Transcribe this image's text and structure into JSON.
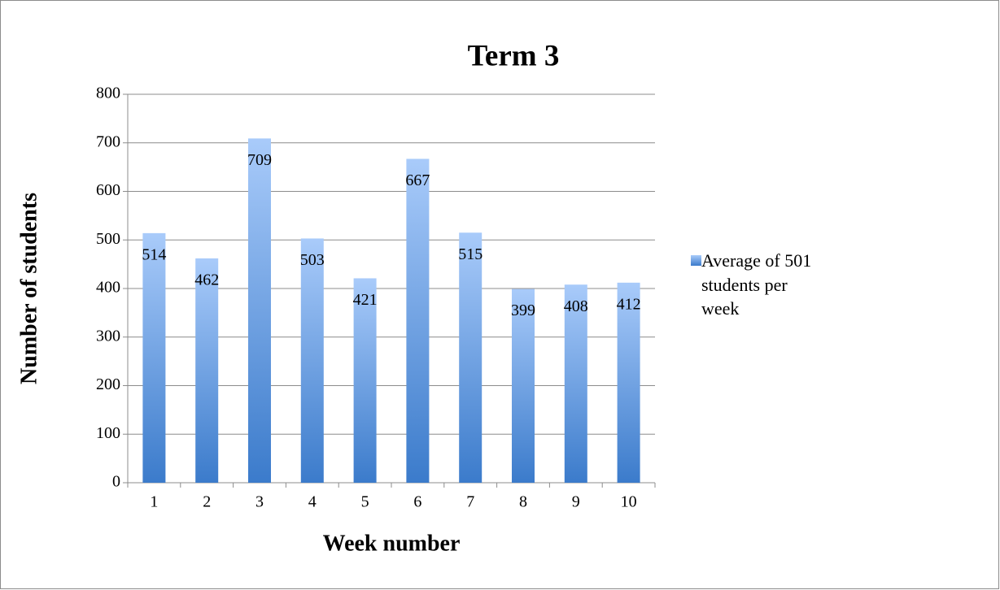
{
  "chart_data": {
    "type": "bar",
    "title": "Term 3",
    "xlabel": "Week number",
    "ylabel": "Number of students",
    "categories": [
      "1",
      "2",
      "3",
      "4",
      "5",
      "6",
      "7",
      "8",
      "9",
      "10"
    ],
    "series": [
      {
        "name": "Average of 501 students per week",
        "color": "#5b95e0",
        "values": [
          514,
          462,
          709,
          503,
          421,
          667,
          515,
          399,
          408,
          412
        ]
      }
    ],
    "ylim": [
      0,
      800
    ],
    "yticks": [
      0,
      100,
      200,
      300,
      400,
      500,
      600,
      700,
      800
    ],
    "grid": true,
    "legend": "right",
    "data_labels": true
  }
}
